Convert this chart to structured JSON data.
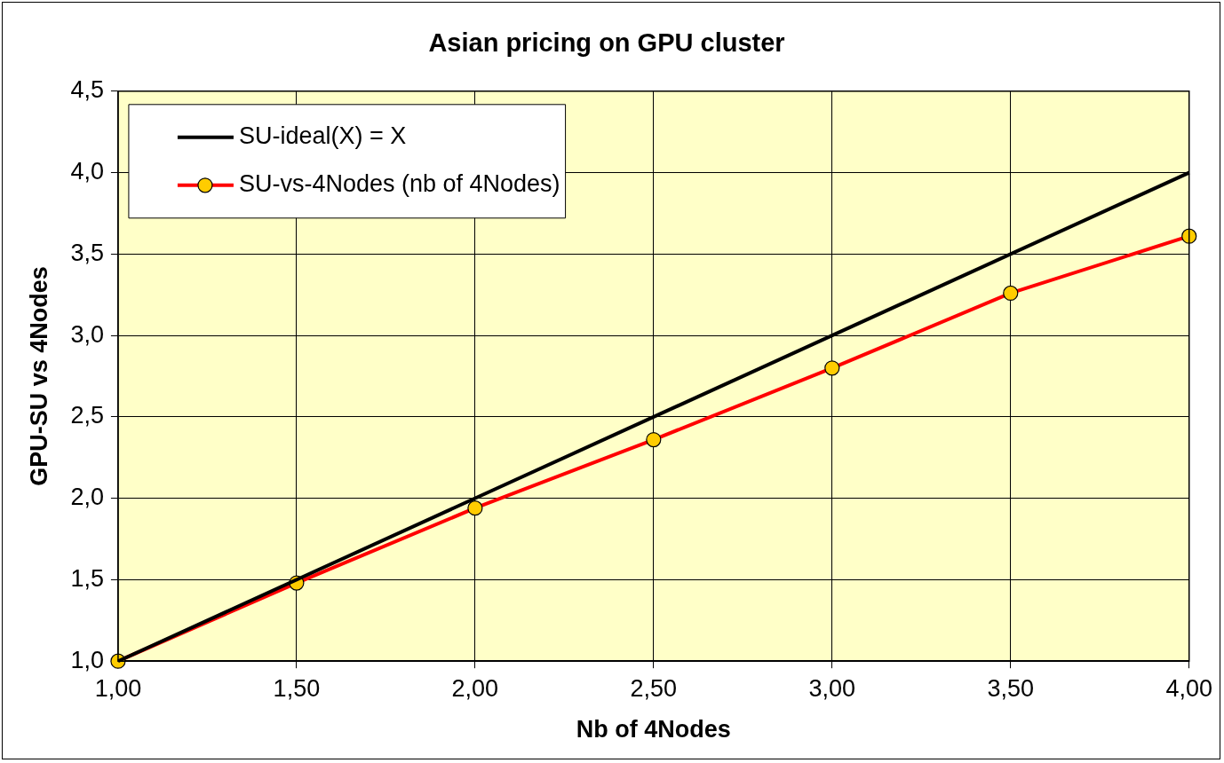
{
  "chart_data": {
    "type": "line",
    "title": "Asian pricing on GPU cluster",
    "xlabel": "Nb of 4Nodes",
    "ylabel": "GPU-SU vs 4Nodes",
    "x": [
      1,
      1.5,
      2,
      2.5,
      3,
      3.5,
      4
    ],
    "series": [
      {
        "name": "SU-ideal(X) = X",
        "color": "#000000",
        "x": [
          1,
          4
        ],
        "values": [
          1,
          4
        ]
      },
      {
        "name": "SU-vs-4Nodes (nb of 4Nodes)",
        "color": "#ff0000",
        "values": [
          1.0,
          1.48,
          1.94,
          2.36,
          2.8,
          3.26,
          3.61
        ],
        "marker": "circle"
      }
    ],
    "xlim": [
      1,
      4
    ],
    "xticks": [
      {
        "value": 1,
        "label": "1,00"
      },
      {
        "value": 1.5,
        "label": "1,50"
      },
      {
        "value": 2,
        "label": "2,00"
      },
      {
        "value": 2.5,
        "label": "2,50"
      },
      {
        "value": 3,
        "label": "3,00"
      },
      {
        "value": 3.5,
        "label": "3,50"
      },
      {
        "value": 4,
        "label": "4,00"
      }
    ],
    "ylim": [
      1,
      4.5
    ],
    "yticks": [
      {
        "value": 1,
        "label": "1,0"
      },
      {
        "value": 1.5,
        "label": "1,5"
      },
      {
        "value": 2,
        "label": "2,0"
      },
      {
        "value": 2.5,
        "label": "2,5"
      },
      {
        "value": 3,
        "label": "3,0"
      },
      {
        "value": 3.5,
        "label": "3,5"
      },
      {
        "value": 4,
        "label": "4,0"
      },
      {
        "value": 4.5,
        "label": "4,5"
      }
    ],
    "grid": true,
    "legend": "top left",
    "line_style": "solid"
  }
}
